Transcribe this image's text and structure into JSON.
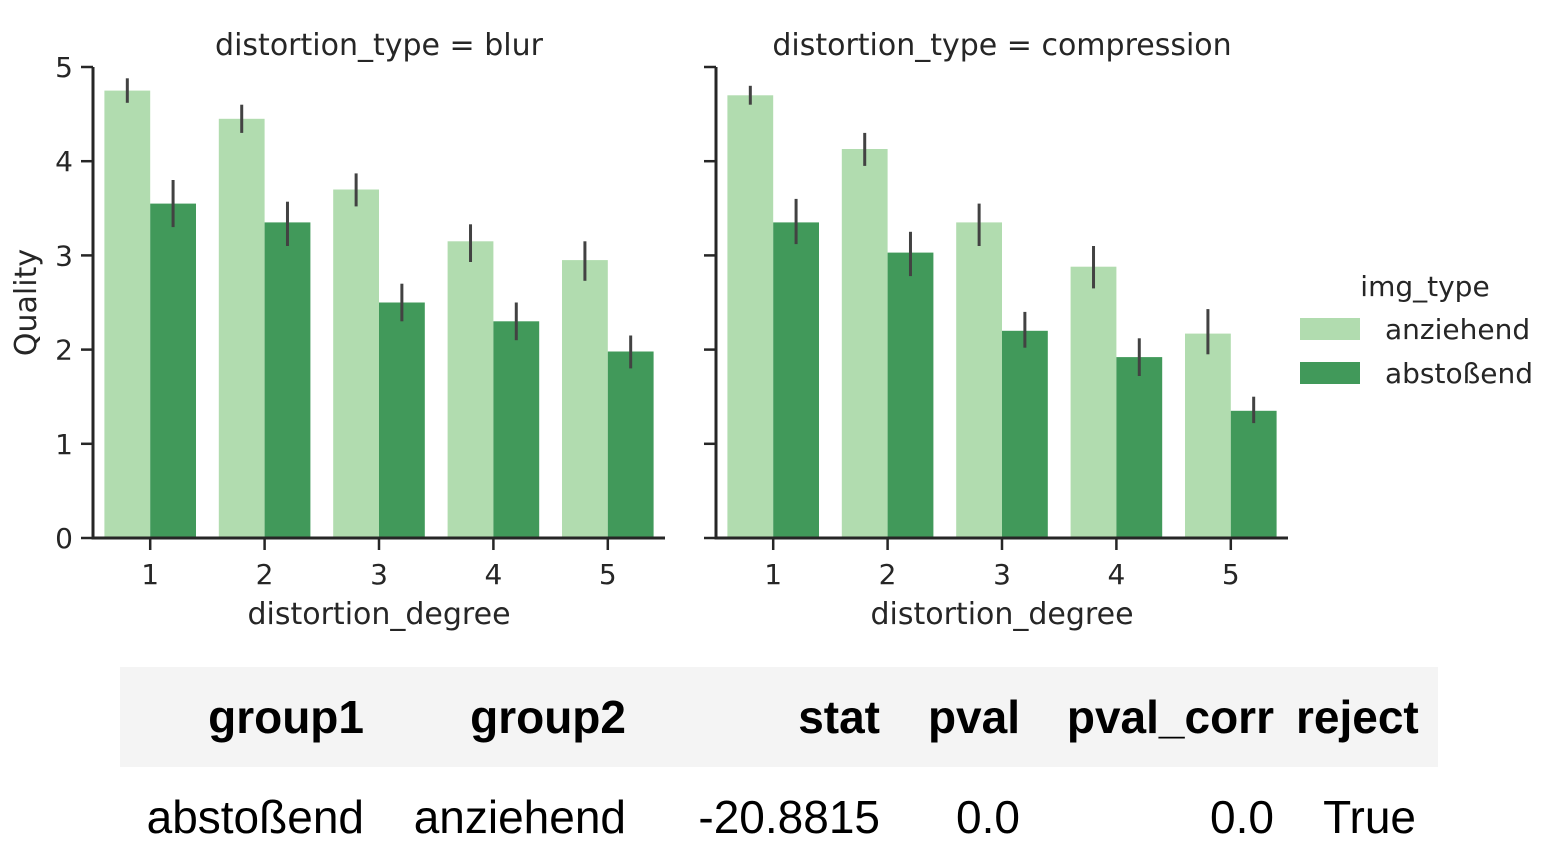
{
  "chart_data": [
    {
      "type": "bar",
      "title": "distortion_type = blur",
      "xlabel": "distortion_degree",
      "ylabel": "Quality",
      "ylim": [
        0,
        5
      ],
      "yticks": [
        0,
        1,
        2,
        3,
        4,
        5
      ],
      "categories": [
        "1",
        "2",
        "3",
        "4",
        "5"
      ],
      "series": [
        {
          "name": "anziehend",
          "values": [
            4.75,
            4.45,
            3.7,
            3.15,
            2.95
          ],
          "err_low": [
            4.62,
            4.3,
            3.52,
            2.93,
            2.73
          ],
          "err_high": [
            4.88,
            4.6,
            3.87,
            3.33,
            3.15
          ]
        },
        {
          "name": "abstoßend",
          "values": [
            3.55,
            3.35,
            2.5,
            2.3,
            1.98
          ],
          "err_low": [
            3.3,
            3.1,
            2.3,
            2.1,
            1.8
          ],
          "err_high": [
            3.8,
            3.57,
            2.7,
            2.5,
            2.15
          ]
        }
      ]
    },
    {
      "type": "bar",
      "title": "distortion_type = compression",
      "xlabel": "distortion_degree",
      "ylabel": "",
      "ylim": [
        0,
        5
      ],
      "yticks": [
        0,
        1,
        2,
        3,
        4,
        5
      ],
      "categories": [
        "1",
        "2",
        "3",
        "4",
        "5"
      ],
      "series": [
        {
          "name": "anziehend",
          "values": [
            4.7,
            4.13,
            3.35,
            2.88,
            2.17
          ],
          "err_low": [
            4.6,
            3.95,
            3.1,
            2.65,
            1.95
          ],
          "err_high": [
            4.8,
            4.3,
            3.55,
            3.1,
            2.43
          ]
        },
        {
          "name": "abstoßend",
          "values": [
            3.35,
            3.03,
            2.2,
            1.92,
            1.35
          ],
          "err_low": [
            3.12,
            2.78,
            2.02,
            1.72,
            1.22
          ],
          "err_high": [
            3.6,
            3.25,
            2.4,
            2.12,
            1.5
          ]
        }
      ]
    }
  ],
  "legend": {
    "title": "img_type",
    "position": "right",
    "items": [
      {
        "label": "anziehend",
        "color": "#b1dcaf"
      },
      {
        "label": "abstoßend",
        "color": "#41995a"
      }
    ]
  },
  "colors": {
    "anziehend": "#b1dcaf",
    "abstoßend": "#41995a",
    "errorbar": "#424242",
    "axis": "#262626"
  },
  "stats_table": {
    "columns": [
      "group1",
      "group2",
      "stat",
      "pval",
      "pval_corr",
      "reject"
    ],
    "rows": [
      [
        "abstoßend",
        "anziehend",
        "-20.8815",
        "0.0",
        "0.0",
        "True"
      ]
    ]
  }
}
